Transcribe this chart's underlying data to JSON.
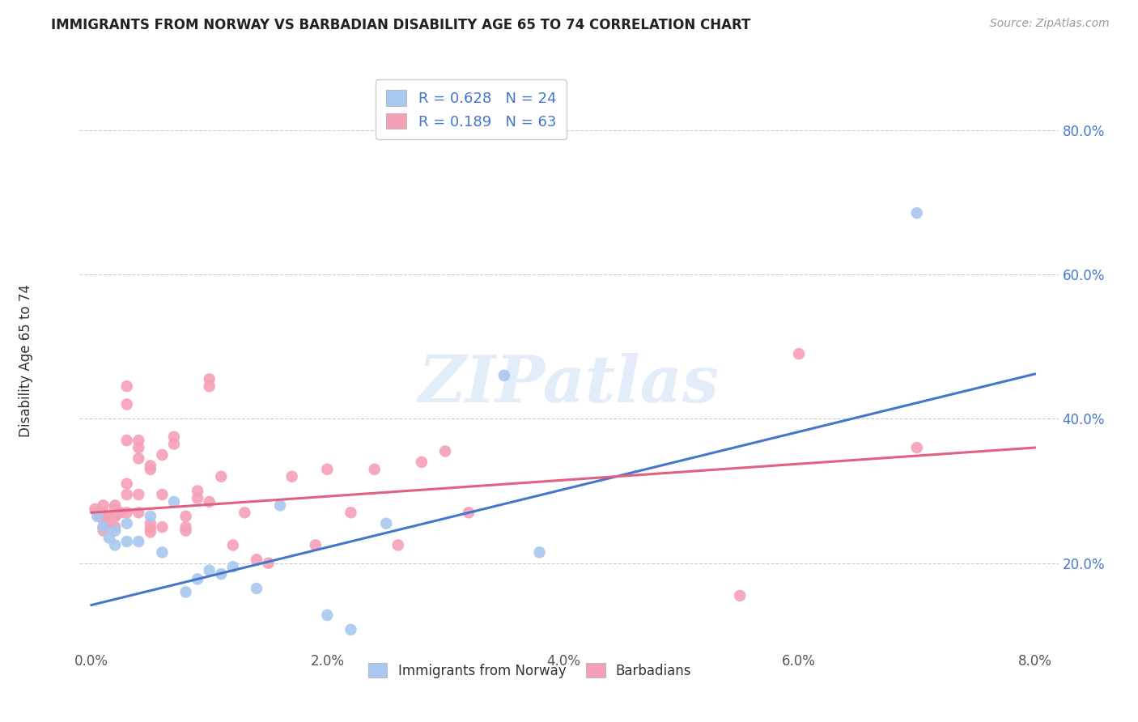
{
  "title": "IMMIGRANTS FROM NORWAY VS BARBADIAN DISABILITY AGE 65 TO 74 CORRELATION CHART",
  "source": "Source: ZipAtlas.com",
  "xlabel_ticks": [
    "0.0%",
    "2.0%",
    "4.0%",
    "6.0%",
    "8.0%"
  ],
  "xlabel_tick_vals": [
    0.0,
    0.02,
    0.04,
    0.06,
    0.08
  ],
  "ylabel": "Disability Age 65 to 74",
  "ylabel_ticks": [
    "20.0%",
    "40.0%",
    "60.0%",
    "80.0%"
  ],
  "ylabel_tick_vals": [
    0.2,
    0.4,
    0.6,
    0.8
  ],
  "xlim": [
    -0.001,
    0.082
  ],
  "ylim": [
    0.08,
    0.88
  ],
  "legend_label1": "R = 0.628   N = 24",
  "legend_label2": "R = 0.189   N = 63",
  "bottom_legend1": "Immigrants from Norway",
  "bottom_legend2": "Barbadians",
  "norway_color": "#a8c8f0",
  "barbadian_color": "#f5a0b5",
  "norway_line_color": "#4477cc",
  "barbadian_line_color": "#e06080",
  "norway_scatter_x": [
    0.0005,
    0.001,
    0.0015,
    0.002,
    0.002,
    0.003,
    0.003,
    0.004,
    0.005,
    0.006,
    0.007,
    0.008,
    0.009,
    0.01,
    0.011,
    0.012,
    0.014,
    0.016,
    0.02,
    0.022,
    0.025,
    0.035,
    0.038,
    0.07
  ],
  "norway_scatter_y": [
    0.265,
    0.25,
    0.235,
    0.225,
    0.245,
    0.255,
    0.23,
    0.23,
    0.265,
    0.215,
    0.285,
    0.16,
    0.178,
    0.19,
    0.185,
    0.195,
    0.165,
    0.28,
    0.128,
    0.108,
    0.255,
    0.46,
    0.215,
    0.685
  ],
  "barbadian_scatter_x": [
    0.0003,
    0.0005,
    0.0007,
    0.001,
    0.001,
    0.001,
    0.001,
    0.001,
    0.001,
    0.0015,
    0.0015,
    0.002,
    0.002,
    0.002,
    0.002,
    0.002,
    0.0025,
    0.003,
    0.003,
    0.003,
    0.003,
    0.003,
    0.003,
    0.004,
    0.004,
    0.004,
    0.004,
    0.004,
    0.005,
    0.005,
    0.005,
    0.005,
    0.005,
    0.006,
    0.006,
    0.006,
    0.007,
    0.007,
    0.008,
    0.008,
    0.008,
    0.009,
    0.009,
    0.01,
    0.01,
    0.01,
    0.011,
    0.012,
    0.013,
    0.014,
    0.015,
    0.017,
    0.019,
    0.02,
    0.022,
    0.024,
    0.026,
    0.028,
    0.03,
    0.032,
    0.055,
    0.06,
    0.07
  ],
  "barbadian_scatter_y": [
    0.275,
    0.27,
    0.265,
    0.28,
    0.27,
    0.265,
    0.26,
    0.25,
    0.245,
    0.265,
    0.255,
    0.28,
    0.275,
    0.265,
    0.25,
    0.265,
    0.27,
    0.445,
    0.42,
    0.37,
    0.31,
    0.295,
    0.27,
    0.37,
    0.36,
    0.345,
    0.295,
    0.27,
    0.335,
    0.33,
    0.255,
    0.248,
    0.243,
    0.295,
    0.25,
    0.35,
    0.375,
    0.365,
    0.265,
    0.25,
    0.245,
    0.3,
    0.29,
    0.455,
    0.445,
    0.285,
    0.32,
    0.225,
    0.27,
    0.205,
    0.2,
    0.32,
    0.225,
    0.33,
    0.27,
    0.33,
    0.225,
    0.34,
    0.355,
    0.27,
    0.155,
    0.49,
    0.36
  ],
  "norway_line_x0": 0.0,
  "norway_line_y0": 0.142,
  "norway_line_x1": 0.08,
  "norway_line_y1": 0.462,
  "barbadian_line_x0": 0.0,
  "barbadian_line_y0": 0.27,
  "barbadian_line_x1": 0.08,
  "barbadian_line_y1": 0.36,
  "watermark": "ZIPatlas",
  "background_color": "#ffffff",
  "grid_color": "#cccccc"
}
